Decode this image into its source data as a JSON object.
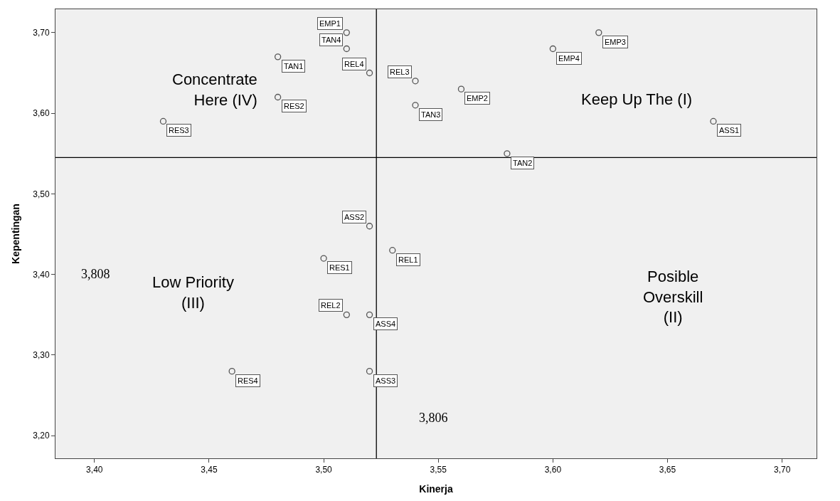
{
  "chart_data": {
    "type": "scatter",
    "xlabel": "Kinerja",
    "ylabel": "Kepentingan",
    "xlim": [
      3.383,
      3.715
    ],
    "xticks": [
      {
        "value": 3.4,
        "label": "3,40"
      },
      {
        "value": 3.45,
        "label": "3,45"
      },
      {
        "value": 3.5,
        "label": "3,50"
      },
      {
        "value": 3.55,
        "label": "3,55"
      },
      {
        "value": 3.6,
        "label": "3,60"
      },
      {
        "value": 3.65,
        "label": "3,65"
      },
      {
        "value": 3.7,
        "label": "3,70"
      }
    ],
    "ylim": [
      3.172,
      3.729
    ],
    "yticks": [
      {
        "value": 3.2,
        "label": "3,20"
      },
      {
        "value": 3.3,
        "label": "3,30"
      },
      {
        "value": 3.4,
        "label": "3,40"
      },
      {
        "value": 3.5,
        "label": "3,50"
      },
      {
        "value": 3.6,
        "label": "3,60"
      },
      {
        "value": 3.7,
        "label": "3,70"
      }
    ],
    "grid": false,
    "marker": "circle",
    "series": [
      {
        "color": "#555555",
        "x": [
          3.51,
          3.51,
          3.48,
          3.52,
          3.54,
          3.56,
          3.48,
          3.54,
          3.43,
          3.6,
          3.62,
          3.67,
          3.58,
          3.52,
          3.53,
          3.5,
          3.51,
          3.52,
          3.52,
          3.46
        ],
        "values": [
          3.7,
          3.68,
          3.67,
          3.65,
          3.64,
          3.63,
          3.62,
          3.61,
          3.59,
          3.68,
          3.7,
          3.59,
          3.55,
          3.46,
          3.43,
          3.42,
          3.35,
          3.35,
          3.28,
          3.28
        ]
      }
    ],
    "ref_lines": [
      {
        "axis": "x",
        "value": 3.523,
        "color": "#000000"
      },
      {
        "axis": "y",
        "value": 3.545,
        "color": "#000000"
      }
    ],
    "annotations": [
      "Concentrate\nHere (IV)",
      "Keep Up The (I)",
      "Low Priority\n(III)",
      "Posible\nOverskill\n(II)",
      "3,808",
      "3,806",
      {
        "text": "EMP1",
        "x": 3.51,
        "y": 3.7
      },
      {
        "text": "TAN4",
        "x": 3.51,
        "y": 3.68
      },
      {
        "text": "TAN1",
        "x": 3.48,
        "y": 3.67
      },
      {
        "text": "REL4",
        "x": 3.52,
        "y": 3.65
      },
      {
        "text": "REL3",
        "x": 3.54,
        "y": 3.64
      },
      {
        "text": "EMP2",
        "x": 3.56,
        "y": 3.63
      },
      {
        "text": "RES2",
        "x": 3.48,
        "y": 3.62
      },
      {
        "text": "TAN3",
        "x": 3.54,
        "y": 3.61
      },
      {
        "text": "RES3",
        "x": 3.43,
        "y": 3.59
      },
      {
        "text": "EMP4",
        "x": 3.6,
        "y": 3.68
      },
      {
        "text": "EMP3",
        "x": 3.62,
        "y": 3.7
      },
      {
        "text": "ASS1",
        "x": 3.67,
        "y": 3.59
      },
      {
        "text": "TAN2",
        "x": 3.58,
        "y": 3.55
      },
      {
        "text": "ASS2",
        "x": 3.52,
        "y": 3.46
      },
      {
        "text": "REL1",
        "x": 3.53,
        "y": 3.43
      },
      {
        "text": "RES1",
        "x": 3.5,
        "y": 3.42
      },
      {
        "text": "REL2",
        "x": 3.51,
        "y": 3.35
      },
      {
        "text": "ASS4",
        "x": 3.52,
        "y": 3.35
      },
      {
        "text": "ASS3",
        "x": 3.52,
        "y": 3.28
      },
      {
        "text": "RES4",
        "x": 3.46,
        "y": 3.28
      }
    ]
  }
}
